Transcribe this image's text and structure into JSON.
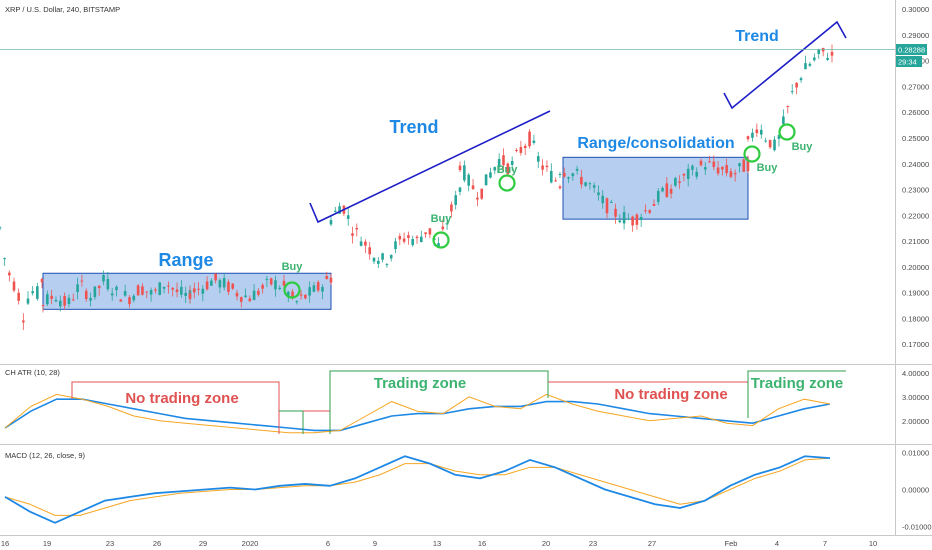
{
  "header": {
    "symbol": "XRP / U.S. Dollar, 240, BITSTAMP"
  },
  "price_tag": {
    "price": "0.28288",
    "countdown": "29:34"
  },
  "colors": {
    "up": "#26a69a",
    "down": "#ef5350",
    "box_fill": "#8fb3e6",
    "box_stroke": "#1e50b4",
    "trendline": "#1e1ec8",
    "label_blue": "#1e88e5",
    "label_green": "#3cb371",
    "label_red": "#e05252",
    "circle": "#2ecc40",
    "atr_line": "#f5a623",
    "atr_signal": "#1e88e5",
    "macd_line": "#1e88e5",
    "macd_signal": "#f5a623"
  },
  "chart_data": [
    {
      "type": "candlestick",
      "title": "XRP / U.S. Dollar, 240, BITSTAMP",
      "ylim": [
        0.165,
        0.302
      ],
      "y_ticks": [
        0.17,
        0.18,
        0.19,
        0.2,
        0.21,
        0.22,
        0.23,
        0.24,
        0.25,
        0.26,
        0.27,
        0.28,
        0.29,
        0.3
      ],
      "y_tick_labels": [
        "0.17000",
        "0.18000",
        "0.19000",
        "0.20000",
        "0.21000",
        "0.22000",
        "0.23000",
        "0.24000",
        "0.25000",
        "0.26000",
        "0.27000",
        "0.28000",
        "0.29000",
        "0.30000"
      ],
      "x_tick_labels": [
        "16",
        "19",
        "23",
        "26",
        "29",
        "2020",
        "6",
        "9",
        "13",
        "16",
        "20",
        "23",
        "27",
        "Feb",
        "4",
        "7",
        "10"
      ],
      "price_path": [
        [
          0.215,
          0.2,
          0.195,
          0.19,
          0.18,
          0.192,
          0.188,
          0.195
        ],
        [
          0.186,
          0.189,
          0.185,
          0.193,
          0.188,
          0.195,
          0.19,
          0.188,
          0.192,
          0.189,
          0.194,
          0.19,
          0.188
        ],
        [
          0.19,
          0.192,
          0.195,
          0.193,
          0.19,
          0.188,
          0.191,
          0.194,
          0.192,
          0.186,
          0.189,
          0.192,
          0.196
        ],
        [
          0.218,
          0.225,
          0.215,
          0.21,
          0.205,
          0.202,
          0.208,
          0.212,
          0.21,
          0.215,
          0.208,
          0.22,
          0.23
        ],
        [
          0.24,
          0.232,
          0.228,
          0.236,
          0.242,
          0.238,
          0.245,
          0.25,
          0.24,
          0.236,
          0.232
        ],
        [
          0.238,
          0.236,
          0.232,
          0.225,
          0.22,
          0.218,
          0.222,
          0.228,
          0.232,
          0.236,
          0.24,
          0.238,
          0.236,
          0.24
        ],
        [
          0.248,
          0.255,
          0.25,
          0.246,
          0.258,
          0.27,
          0.276,
          0.28,
          0.283,
          0.282
        ]
      ],
      "annotations": {
        "range": "Range",
        "trend1": "Trend",
        "consolidation": "Range/consolidation",
        "trend2": "Trend",
        "buy": "Buy"
      },
      "boxes": [
        {
          "name": "range",
          "x_from": "19",
          "x_to": "6",
          "y_from": 0.1835,
          "y_to": 0.1975
        },
        {
          "name": "consolidation",
          "x_from": "20",
          "x_to": "Feb",
          "y_from": 0.2185,
          "y_to": 0.2425
        }
      ],
      "last_price": 0.28288
    },
    {
      "type": "line",
      "title": "CH ATR (10, 28)",
      "ylim": [
        1.2,
        4.2
      ],
      "y_ticks": [
        2.0,
        3.0,
        4.0
      ],
      "y_tick_labels": [
        "2.00000",
        "3.00000",
        "4.00000"
      ],
      "zones": {
        "no_trading_1": "No trading zone",
        "trading_1": "Trading zone",
        "no_trading_2": "No trading zone",
        "trading_2": "Trading zone"
      },
      "series": [
        {
          "values": [
            1.7,
            2.6,
            3.1,
            2.9,
            2.6,
            2.2,
            2.0,
            1.9,
            1.8,
            1.7,
            1.6,
            1.5,
            1.5,
            1.6,
            2.2,
            2.8,
            2.4,
            2.3,
            3.0,
            2.6,
            2.5,
            3.1,
            2.7,
            2.4,
            2.2,
            2.0,
            2.1,
            2.2,
            1.9,
            1.8,
            2.5,
            2.9,
            2.7
          ]
        },
        {
          "values": [
            1.7,
            2.4,
            2.9,
            2.9,
            2.7,
            2.5,
            2.3,
            2.1,
            2.0,
            1.9,
            1.8,
            1.7,
            1.6,
            1.6,
            1.9,
            2.2,
            2.3,
            2.3,
            2.5,
            2.6,
            2.6,
            2.8,
            2.8,
            2.7,
            2.5,
            2.3,
            2.2,
            2.1,
            2.0,
            1.9,
            2.2,
            2.5,
            2.7
          ]
        }
      ]
    },
    {
      "type": "line",
      "title": "MACD (12, 26, close, 9)",
      "ylim": [
        -0.0115,
        0.0115
      ],
      "y_ticks": [
        0.01,
        0.0,
        -0.01
      ],
      "y_tick_labels": [
        "0.01000",
        "0.00000",
        "-0.01000"
      ],
      "series": [
        {
          "values": [
            -0.002,
            -0.006,
            -0.009,
            -0.006,
            -0.003,
            -0.002,
            -0.001,
            -0.0005,
            0.0,
            0.0005,
            0.0,
            0.001,
            0.0015,
            0.001,
            0.003,
            0.006,
            0.009,
            0.007,
            0.004,
            0.003,
            0.005,
            0.008,
            0.006,
            0.003,
            0.0,
            -0.002,
            -0.004,
            -0.005,
            -0.003,
            0.001,
            0.004,
            0.006,
            0.009,
            0.0085
          ]
        },
        {
          "values": [
            -0.002,
            -0.004,
            -0.007,
            -0.007,
            -0.005,
            -0.003,
            -0.002,
            -0.001,
            -0.0005,
            0.0,
            0.0,
            0.0005,
            0.001,
            0.001,
            0.002,
            0.004,
            0.007,
            0.007,
            0.005,
            0.004,
            0.004,
            0.006,
            0.006,
            0.004,
            0.002,
            0.0,
            -0.002,
            -0.004,
            -0.003,
            0.0,
            0.003,
            0.005,
            0.008,
            0.0085
          ]
        }
      ]
    }
  ]
}
